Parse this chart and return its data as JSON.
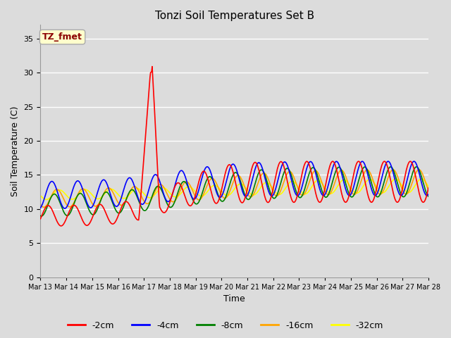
{
  "title": "Tonzi Soil Temperatures Set B",
  "xlabel": "Time",
  "ylabel": "Soil Temperature (C)",
  "ylim": [
    0,
    37
  ],
  "yticks": [
    0,
    5,
    10,
    15,
    20,
    25,
    30,
    35
  ],
  "fig_bg_color": "#dcdcdc",
  "plot_bg_color": "#dcdcdc",
  "grid_color": "white",
  "annotation_text": "TZ_fmet",
  "annotation_color": "#8b0000",
  "annotation_bg": "#ffffcc",
  "annotation_edge": "#aaaaaa",
  "legend_entries": [
    "-2cm",
    "-4cm",
    "-8cm",
    "-16cm",
    "-32cm"
  ],
  "line_colors": [
    "red",
    "blue",
    "green",
    "orange",
    "yellow"
  ],
  "line_widths": [
    1.2,
    1.2,
    1.2,
    1.2,
    1.2
  ],
  "num_points": 720
}
